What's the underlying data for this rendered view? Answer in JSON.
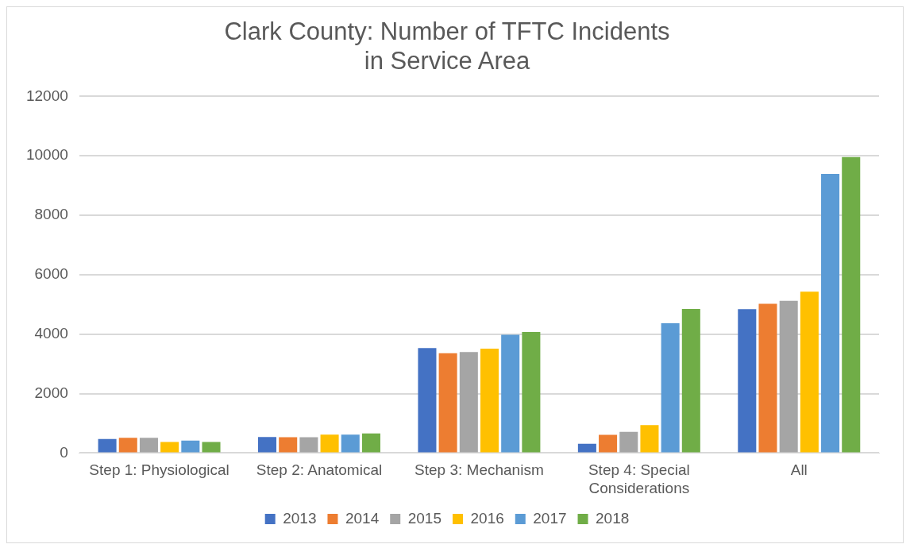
{
  "chart_data": {
    "type": "bar",
    "title": "Clark County: Number of TFTC Incidents\nin Service Area",
    "categories": [
      "Step 1: Physiological",
      "Step 2: Anatomical",
      "Step 3: Mechanism",
      "Step 4: Special\nConsiderations",
      "All"
    ],
    "series": [
      {
        "name": "2013",
        "color": "#4472c4",
        "values": [
          470,
          540,
          3530,
          310,
          4840
        ]
      },
      {
        "name": "2014",
        "color": "#ed7d31",
        "values": [
          510,
          530,
          3360,
          610,
          5020
        ]
      },
      {
        "name": "2015",
        "color": "#a5a5a5",
        "values": [
          510,
          530,
          3400,
          710,
          5120
        ]
      },
      {
        "name": "2016",
        "color": "#ffc000",
        "values": [
          370,
          620,
          3510,
          940,
          5430
        ]
      },
      {
        "name": "2017",
        "color": "#5b9bd5",
        "values": [
          420,
          620,
          3980,
          4370,
          9390
        ]
      },
      {
        "name": "2018",
        "color": "#70ad47",
        "values": [
          370,
          660,
          4070,
          4850,
          9960
        ]
      }
    ],
    "ylim": [
      0,
      12000
    ],
    "yticks": [
      0,
      2000,
      4000,
      6000,
      8000,
      10000,
      12000
    ],
    "grid": "y",
    "legend": "bottom"
  }
}
